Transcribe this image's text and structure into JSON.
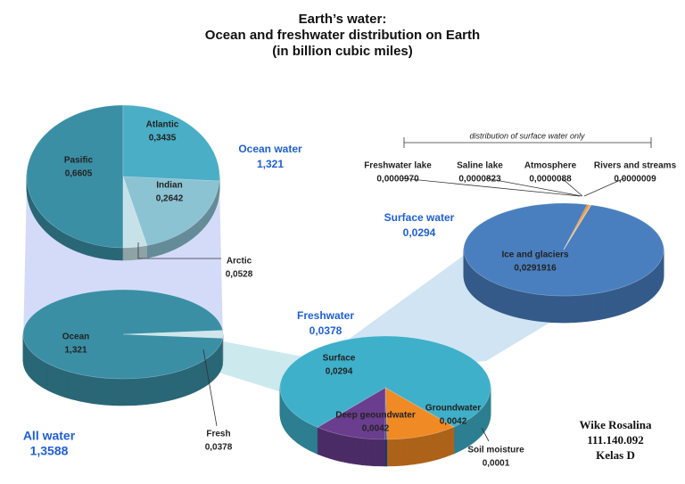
{
  "title": [
    "Earth’s water:",
    "Ocean and freshwater distribution on Earth",
    "(in billion cubic miles)"
  ],
  "author": [
    "Wike Rosalina",
    "111.140.092",
    "Kelas D"
  ],
  "chart_data": [
    {
      "type": "pie",
      "name": "Ocean water",
      "total": 1.321,
      "total_label": "1,321",
      "categories": [
        "Pasific",
        "Atlantic",
        "Indian",
        "Arctic"
      ],
      "values": [
        0.6605,
        0.3435,
        0.2642,
        0.0528
      ],
      "value_labels": [
        "0,6605",
        "0,3435",
        "0,2642",
        "0,0528"
      ],
      "colors": [
        "#3a8fa5",
        "#4aaec6",
        "#8cc3d3",
        "#c6e2e8"
      ]
    },
    {
      "type": "pie",
      "name": "All water",
      "total": 1.3588,
      "total_label": "1,3588",
      "categories": [
        "Ocean",
        "Fresh"
      ],
      "values": [
        1.321,
        0.0378
      ],
      "value_labels": [
        "1,321",
        "0,0378"
      ],
      "colors": [
        "#3a8fa5",
        "#cfe6ec"
      ]
    },
    {
      "type": "pie",
      "name": "Freshwater",
      "total": 0.0378,
      "total_label": "0,0378",
      "categories": [
        "Surface",
        "Groundwater",
        "Soil moisture",
        "Deep geoundwater"
      ],
      "values": [
        0.0294,
        0.0042,
        0.0001,
        0.0042
      ],
      "value_labels": [
        "0,0294",
        "0,0042",
        "0,0001",
        "0,0042"
      ],
      "colors": [
        "#3fb0c9",
        "#f08a24",
        "#1f4e9e",
        "#6a3d8f"
      ]
    },
    {
      "type": "pie",
      "name": "Surface water",
      "total": 0.0294,
      "total_label": "0,0294",
      "annotation": "distribution of surface water only",
      "categories": [
        "Ice and glaciers",
        "Freshwater lake",
        "Saline lake",
        "Atmosphere",
        "Rivers and streams"
      ],
      "values": [
        0.0291916,
        9.7e-05,
        8.23e-05,
        8.8e-06,
        9e-07
      ],
      "value_labels": [
        "0,0291916",
        "0,0000970",
        "0,0000823",
        "0,0000088",
        "0,0000009"
      ],
      "colors": [
        "#4a7fbf",
        "#f08a24",
        "#f5a03c",
        "#e07a1a",
        "#c86010"
      ]
    }
  ]
}
